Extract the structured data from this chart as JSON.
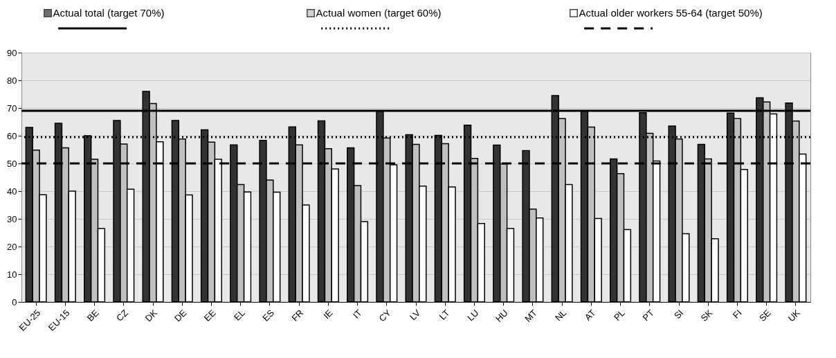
{
  "chart_data": {
    "type": "bar",
    "categories": [
      "EU-25",
      "EU-15",
      "BE",
      "CZ",
      "DK",
      "DE",
      "EE",
      "EL",
      "ES",
      "FR",
      "IE",
      "IT",
      "CY",
      "LV",
      "LT",
      "LU",
      "HU",
      "MT",
      "NL",
      "AT",
      "PL",
      "PT",
      "SI",
      "SK",
      "FI",
      "SE",
      "UK"
    ],
    "series": [
      {
        "name": "Actual total (target 70%)",
        "color": "#333333",
        "values": [
          63,
          64.5,
          60,
          65.5,
          76,
          65.5,
          62.1,
          56.7,
          58.3,
          63.2,
          65.4,
          55.6,
          68.8,
          60.4,
          60.1,
          63.8,
          56.6,
          54.6,
          74.5,
          68.9,
          51.6,
          68.3,
          63.5,
          56.9,
          68.2,
          73.7,
          71.8
        ]
      },
      {
        "name": "Actual women (target 60%)",
        "color": "#c0c0c0",
        "values": [
          54.8,
          55.6,
          51.5,
          57,
          71.6,
          58.8,
          57.7,
          42.4,
          44,
          56.7,
          55.3,
          42,
          59.2,
          56.9,
          57.1,
          51.8,
          49.8,
          33.5,
          66.2,
          63.1,
          46.3,
          60.9,
          58.8,
          51.6,
          66.2,
          72.2,
          65.3
        ]
      },
      {
        "name": "Actual older workers 55-64 (target 50%)",
        "color": "#ffffff",
        "values": [
          38.7,
          40,
          26.5,
          40.7,
          57.8,
          38.6,
          51.5,
          39.7,
          39.6,
          35,
          48,
          29,
          49.5,
          41.8,
          41.5,
          28.3,
          26.5,
          30.3,
          42.4,
          30.1,
          26.1,
          50.9,
          24.6,
          22.8,
          47.8,
          67.9,
          53.4
        ]
      }
    ],
    "ylim": [
      0,
      90
    ],
    "yticks": [
      0,
      10,
      20,
      30,
      40,
      50,
      60,
      70,
      80,
      90
    ],
    "grid": "y",
    "legend": "top",
    "ref_lines": [
      {
        "axis": "y",
        "value": 69,
        "color": "#000000",
        "line_style": "solid"
      },
      {
        "axis": "y",
        "value": 59.5,
        "color": "#000000",
        "line_style": "dotted"
      },
      {
        "axis": "y",
        "value": 50,
        "color": "#000000",
        "line_style": "dashed"
      }
    ]
  }
}
